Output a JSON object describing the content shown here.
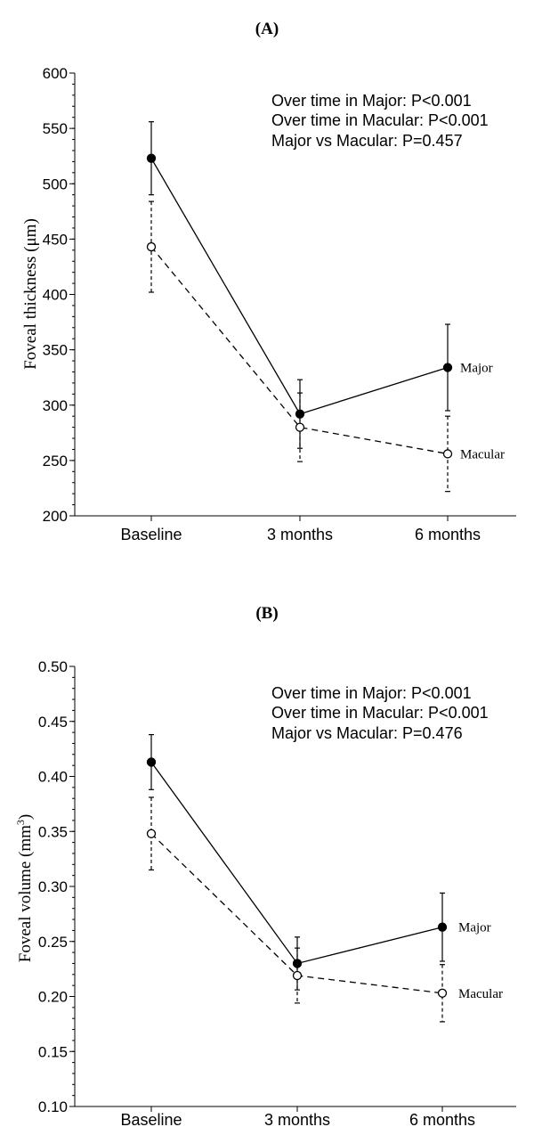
{
  "chart_data": [
    {
      "type": "line",
      "panel_label": "A",
      "ylabel": "Foveal thickness (μm)",
      "categories": [
        "Baseline",
        "3 months",
        "6 months"
      ],
      "ylim": [
        200,
        600
      ],
      "yticks": [
        "200",
        "250",
        "300",
        "350",
        "400",
        "450",
        "500",
        "550",
        "600"
      ],
      "ytick_values": [
        200,
        250,
        300,
        350,
        400,
        450,
        500,
        550,
        600
      ],
      "minor_tick_step": 10,
      "annotations": [
        "Over time in Major: P<0.001",
        "Over time in Macular: P<0.001",
        "Major vs Macular: P=0.457"
      ],
      "series": [
        {
          "name": "Major",
          "marker": "filled-circle",
          "line_style": "solid",
          "values": [
            523,
            292,
            334
          ],
          "errors": [
            33,
            31,
            39
          ]
        },
        {
          "name": "Macular",
          "marker": "open-circle",
          "line_style": "dashed",
          "values": [
            443,
            280,
            256
          ],
          "errors": [
            41,
            31,
            34
          ]
        }
      ]
    },
    {
      "type": "line",
      "panel_label": "B",
      "ylabel": "Foveal volume (mm",
      "ylabel_sup": "3",
      "ylabel_end": ")",
      "categories": [
        "Baseline",
        "3 months",
        "6 months"
      ],
      "ylim": [
        0.1,
        0.5
      ],
      "yticks": [
        "0.10",
        "0.15",
        "0.20",
        "0.25",
        "0.30",
        "0.35",
        "0.40",
        "0.45",
        "0.50"
      ],
      "ytick_values": [
        0.1,
        0.15,
        0.2,
        0.25,
        0.3,
        0.35,
        0.4,
        0.45,
        0.5
      ],
      "minor_tick_step": 0.01,
      "annotations": [
        "Over time in Major: P<0.001",
        "Over time in Macular: P<0.001",
        "Major vs Macular: P=0.476"
      ],
      "series": [
        {
          "name": "Major",
          "marker": "filled-circle",
          "line_style": "solid",
          "values": [
            0.413,
            0.23,
            0.263
          ],
          "errors": [
            0.025,
            0.024,
            0.031
          ]
        },
        {
          "name": "Macular",
          "marker": "open-circle",
          "line_style": "dashed",
          "values": [
            0.348,
            0.219,
            0.203
          ],
          "errors": [
            0.033,
            0.025,
            0.026
          ]
        }
      ]
    }
  ]
}
